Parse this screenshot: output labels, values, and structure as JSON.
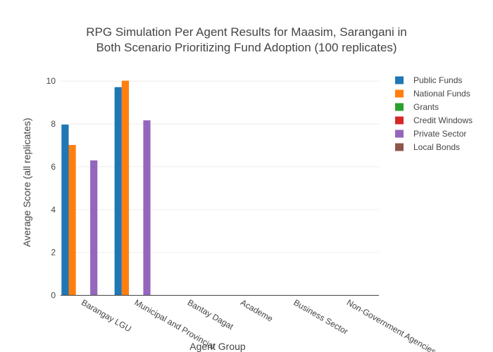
{
  "chart_data": {
    "type": "bar",
    "title_lines": [
      "RPG Simulation Per Agent Results for Maasim, Sarangani in",
      "Both Scenario Prioritizing Fund Adoption (100 replicates)"
    ],
    "xlabel": "Agent Group",
    "ylabel": "Average Score (all replicates)",
    "ylim": [
      0,
      10.5
    ],
    "yticks": [
      0,
      2,
      4,
      6,
      8,
      10
    ],
    "grid": true,
    "legend_position": "top-right",
    "categories": [
      "Barangay LGU",
      "Municipal and Provincial",
      "Bantay Dagat",
      "Academe",
      "Business Sector",
      "Non-Government Agencies"
    ],
    "series": [
      {
        "name": "Public Funds",
        "color": "#1f77b4",
        "values": [
          7.97,
          9.72,
          0,
          0,
          0,
          0
        ]
      },
      {
        "name": "National Funds",
        "color": "#ff7f0e",
        "values": [
          7.02,
          10.02,
          0,
          0,
          0,
          0
        ]
      },
      {
        "name": "Grants",
        "color": "#2ca02c",
        "values": [
          0,
          0,
          0,
          0,
          0,
          0
        ]
      },
      {
        "name": "Credit Windows",
        "color": "#d62728",
        "values": [
          0,
          0,
          0,
          0,
          0,
          0
        ]
      },
      {
        "name": "Private Sector",
        "color": "#9467bd",
        "values": [
          6.3,
          8.17,
          0,
          0,
          0,
          0
        ]
      },
      {
        "name": "Local Bonds",
        "color": "#8c564b",
        "values": [
          0,
          0,
          0,
          0,
          0,
          0
        ]
      }
    ]
  }
}
